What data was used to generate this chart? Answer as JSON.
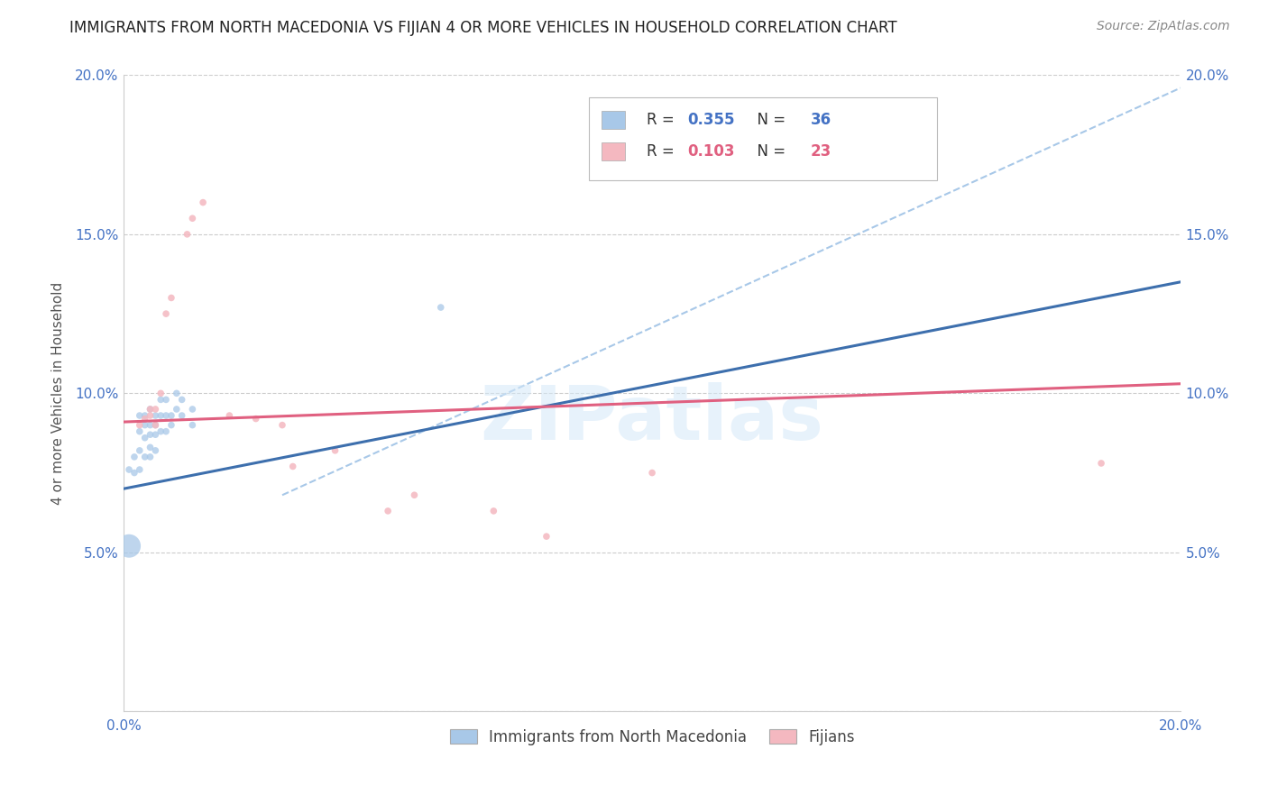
{
  "title": "IMMIGRANTS FROM NORTH MACEDONIA VS FIJIAN 4 OR MORE VEHICLES IN HOUSEHOLD CORRELATION CHART",
  "source": "Source: ZipAtlas.com",
  "ylabel": "4 or more Vehicles in Household",
  "xlim": [
    0.0,
    0.2
  ],
  "ylim": [
    0.0,
    0.2
  ],
  "xtick_positions": [
    0.0,
    0.04,
    0.08,
    0.12,
    0.16,
    0.2
  ],
  "xtick_labels": [
    "0.0%",
    "",
    "",
    "",
    "",
    "20.0%"
  ],
  "ytick_positions": [
    0.0,
    0.05,
    0.1,
    0.15,
    0.2
  ],
  "ytick_labels": [
    "",
    "5.0%",
    "10.0%",
    "15.0%",
    "20.0%"
  ],
  "legend_series1": "Immigrants from North Macedonia",
  "legend_series2": "Fijians",
  "blue_color": "#a8c8e8",
  "pink_color": "#f4b8c0",
  "blue_line_color": "#3d6fad",
  "pink_line_color": "#e06080",
  "dashed_line_color": "#a8c8e8",
  "watermark": "ZIPatlas",
  "blue_R": "0.355",
  "blue_N": "36",
  "pink_R": "0.103",
  "pink_N": "23",
  "blue_points_x": [
    0.001,
    0.002,
    0.002,
    0.003,
    0.003,
    0.003,
    0.003,
    0.004,
    0.004,
    0.004,
    0.004,
    0.005,
    0.005,
    0.005,
    0.005,
    0.005,
    0.006,
    0.006,
    0.006,
    0.006,
    0.007,
    0.007,
    0.007,
    0.008,
    0.008,
    0.008,
    0.009,
    0.009,
    0.01,
    0.01,
    0.011,
    0.011,
    0.013,
    0.013,
    0.06,
    0.001
  ],
  "blue_points_y": [
    0.076,
    0.08,
    0.075,
    0.093,
    0.088,
    0.082,
    0.076,
    0.093,
    0.09,
    0.086,
    0.08,
    0.095,
    0.09,
    0.087,
    0.083,
    0.08,
    0.093,
    0.09,
    0.087,
    0.082,
    0.098,
    0.093,
    0.088,
    0.098,
    0.093,
    0.088,
    0.093,
    0.09,
    0.1,
    0.095,
    0.098,
    0.093,
    0.095,
    0.09,
    0.127,
    0.052
  ],
  "blue_points_size": [
    30,
    30,
    30,
    30,
    30,
    30,
    30,
    30,
    30,
    30,
    30,
    30,
    30,
    30,
    30,
    30,
    30,
    30,
    30,
    30,
    30,
    30,
    30,
    30,
    30,
    30,
    30,
    30,
    30,
    30,
    30,
    30,
    30,
    30,
    30,
    350
  ],
  "pink_points_x": [
    0.003,
    0.004,
    0.005,
    0.005,
    0.006,
    0.006,
    0.007,
    0.008,
    0.009,
    0.012,
    0.013,
    0.015,
    0.02,
    0.025,
    0.03,
    0.032,
    0.04,
    0.05,
    0.055,
    0.07,
    0.08,
    0.1,
    0.185
  ],
  "pink_points_y": [
    0.09,
    0.092,
    0.095,
    0.093,
    0.09,
    0.095,
    0.1,
    0.125,
    0.13,
    0.15,
    0.155,
    0.16,
    0.093,
    0.092,
    0.09,
    0.077,
    0.082,
    0.063,
    0.068,
    0.063,
    0.055,
    0.075,
    0.078
  ],
  "pink_points_size": [
    30,
    30,
    30,
    30,
    30,
    30,
    30,
    30,
    30,
    30,
    30,
    30,
    30,
    30,
    30,
    30,
    30,
    30,
    30,
    30,
    30,
    30,
    30
  ],
  "blue_line_x": [
    0.0,
    0.2
  ],
  "blue_line_y": [
    0.07,
    0.135
  ],
  "pink_line_x": [
    0.0,
    0.2
  ],
  "pink_line_y": [
    0.091,
    0.103
  ],
  "dashed_line_x": [
    0.03,
    0.2
  ],
  "dashed_line_y": [
    0.068,
    0.196
  ]
}
